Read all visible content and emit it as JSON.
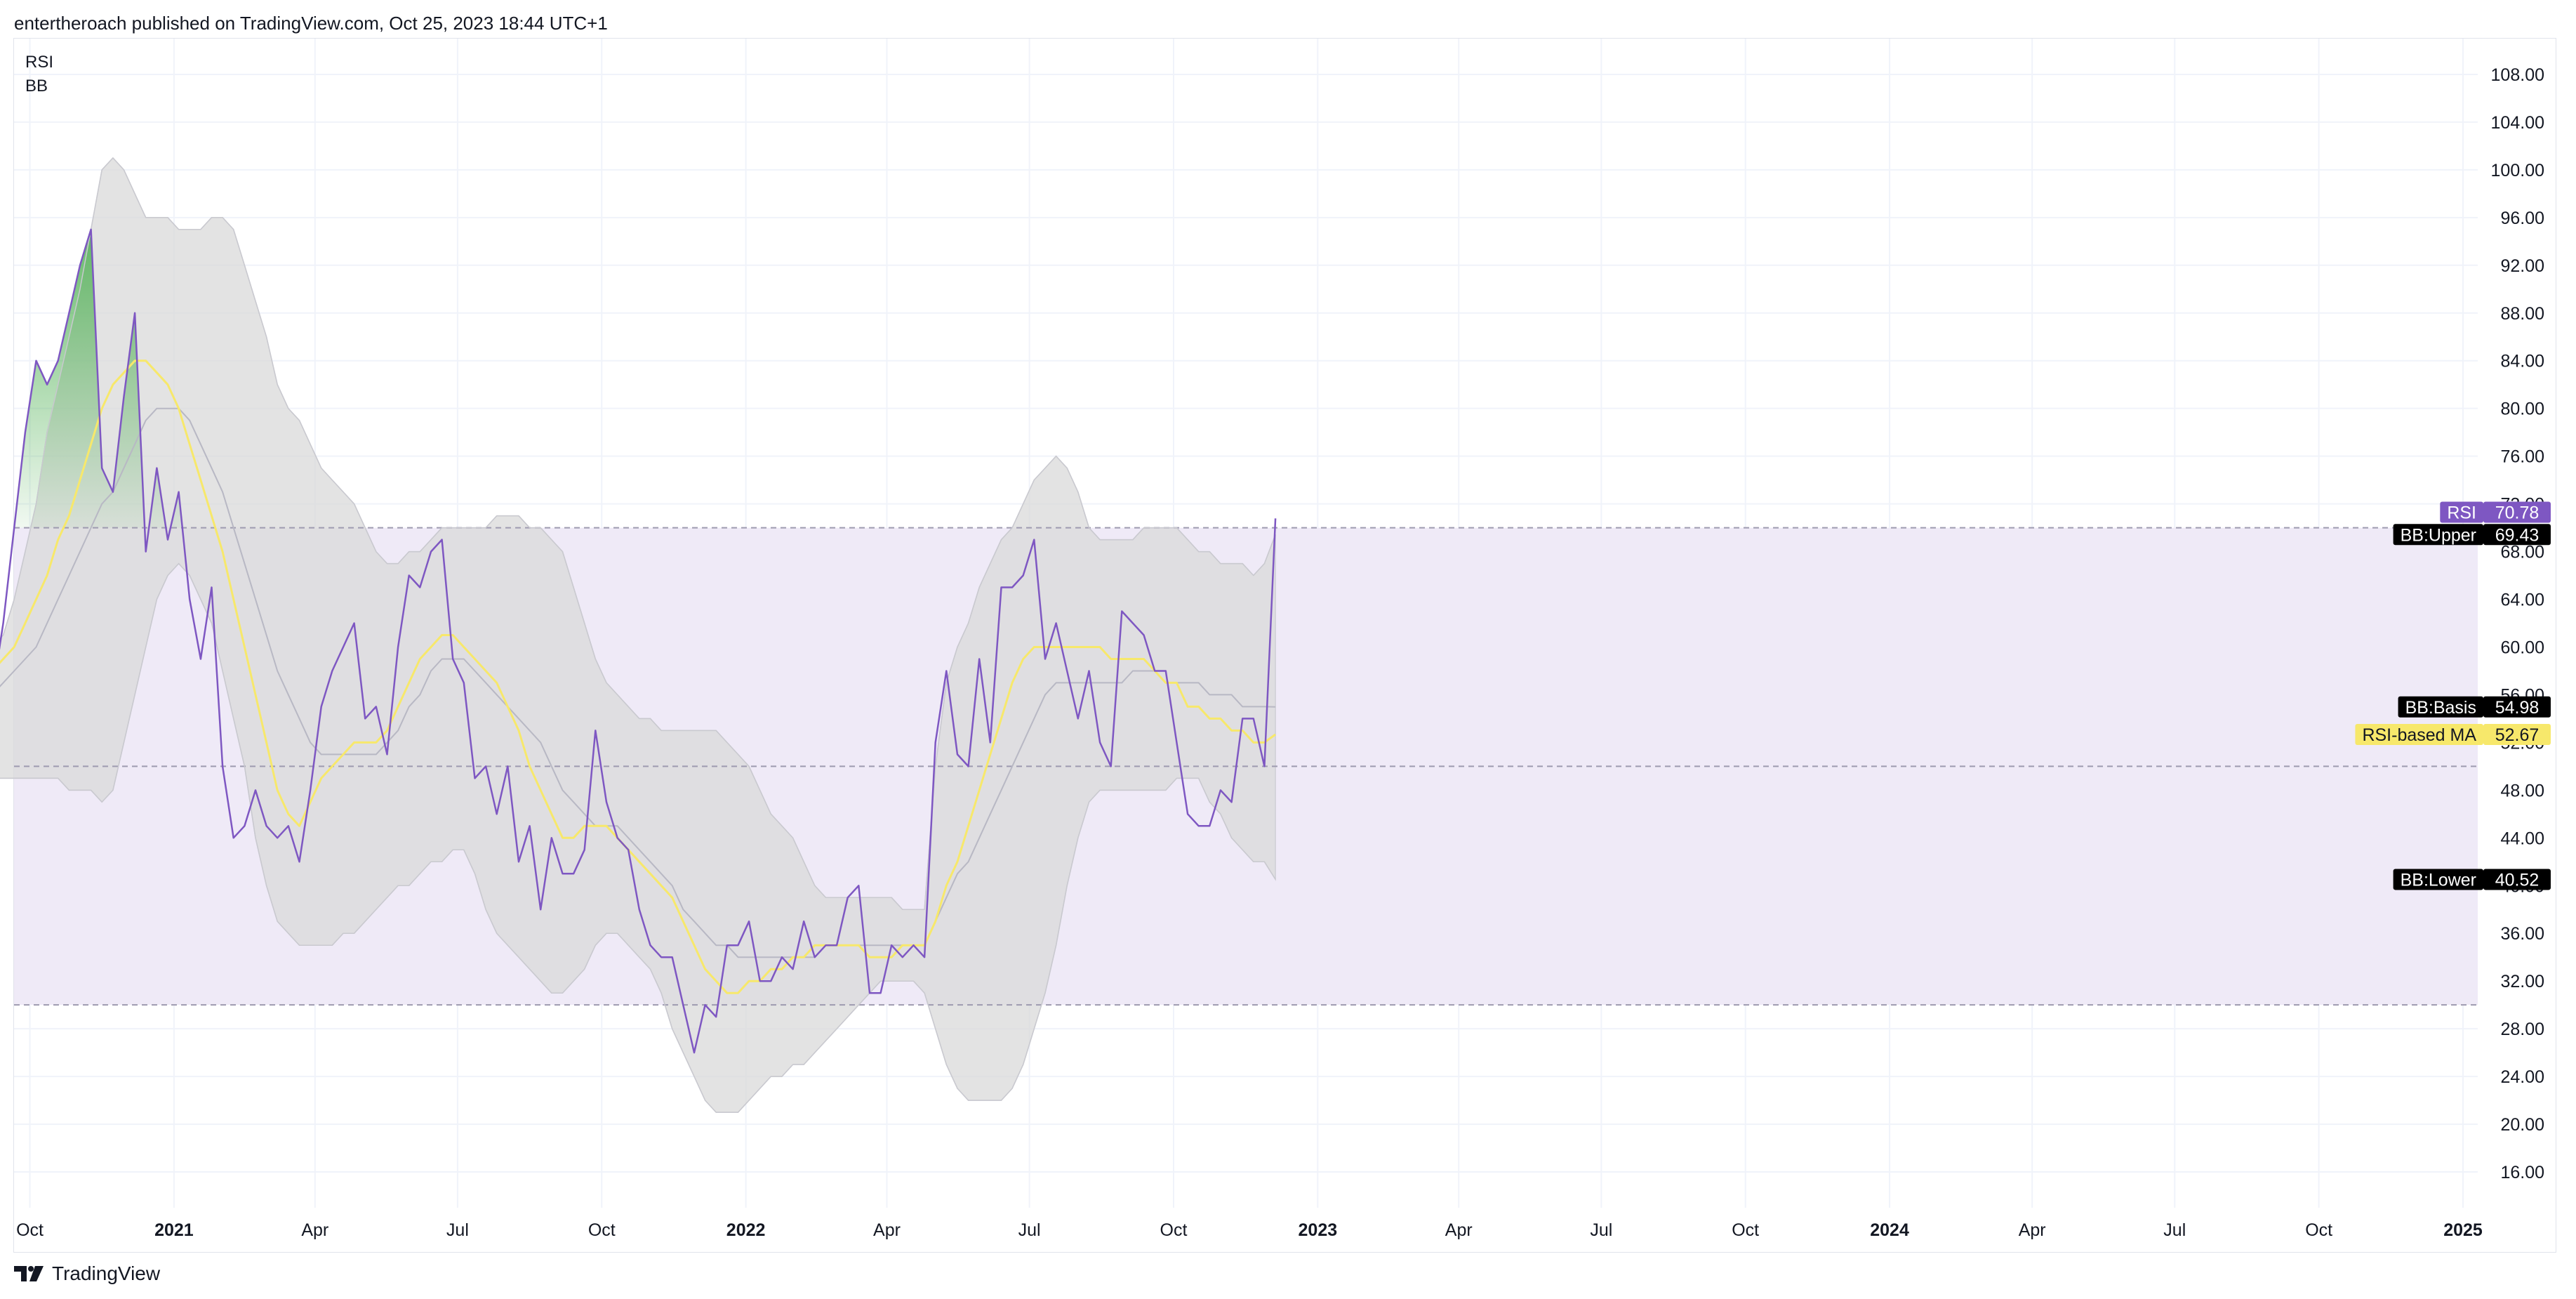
{
  "header": {
    "text": "entertheroach published on TradingView.com, Oct 25, 2023 18:44 UTC+1"
  },
  "legend": {
    "items": [
      "RSI",
      "BB"
    ]
  },
  "footer": {
    "brand": "TradingView"
  },
  "colors": {
    "rsi": "#7e57c2",
    "ma": "#f7e86b",
    "bb_band": "#d9d9d9",
    "bb_basis": "#b8b8c4",
    "band_zone": "#efeaf7",
    "overbought_fill": "#4caf50",
    "grid": "#f0f3fa",
    "level": "#9e9bb0"
  },
  "chart_data": {
    "type": "line",
    "x_start": "2020-09-07",
    "x_interval": "weekly",
    "ylim": [
      13.0,
      111.0
    ],
    "yticks": [
      16.0,
      20.0,
      24.0,
      28.0,
      32.0,
      36.0,
      40.0,
      44.0,
      48.0,
      52.0,
      56.0,
      60.0,
      64.0,
      68.0,
      72.0,
      76.0,
      80.0,
      84.0,
      88.0,
      92.0,
      96.0,
      100.0,
      104.0,
      108.0
    ],
    "xticks": [
      {
        "label": "Oct",
        "date": "2020-10-01",
        "bold": false
      },
      {
        "label": "2021",
        "date": "2021-01-01",
        "bold": true
      },
      {
        "label": "Apr",
        "date": "2021-04-01",
        "bold": false
      },
      {
        "label": "Jul",
        "date": "2021-07-01",
        "bold": false
      },
      {
        "label": "Oct",
        "date": "2021-10-01",
        "bold": false
      },
      {
        "label": "2022",
        "date": "2022-01-01",
        "bold": true
      },
      {
        "label": "Apr",
        "date": "2022-04-01",
        "bold": false
      },
      {
        "label": "Jul",
        "date": "2022-07-01",
        "bold": false
      },
      {
        "label": "Oct",
        "date": "2022-10-01",
        "bold": false
      },
      {
        "label": "2023",
        "date": "2023-01-01",
        "bold": true
      },
      {
        "label": "Apr",
        "date": "2023-04-01",
        "bold": false
      },
      {
        "label": "Jul",
        "date": "2023-07-01",
        "bold": false
      },
      {
        "label": "Oct",
        "date": "2023-10-01",
        "bold": false
      },
      {
        "label": "2024",
        "date": "2024-01-01",
        "bold": true
      },
      {
        "label": "Apr",
        "date": "2024-04-01",
        "bold": false
      },
      {
        "label": "Jul",
        "date": "2024-07-01",
        "bold": false
      },
      {
        "label": "Oct",
        "date": "2024-10-01",
        "bold": false
      },
      {
        "label": "2025",
        "date": "2025-01-01",
        "bold": true
      }
    ],
    "levels": {
      "upper": 70,
      "middle": 50,
      "lower": 30
    },
    "grid": true,
    "series": [
      {
        "name": "RSI",
        "values": [
          56,
          62,
          70,
          78,
          84,
          82,
          84,
          88,
          92,
          95,
          75,
          73,
          81,
          88,
          68,
          75,
          69,
          73,
          64,
          59,
          65,
          50,
          44,
          45,
          48,
          45,
          44,
          45,
          42,
          48,
          55,
          58,
          60,
          62,
          54,
          55,
          51,
          60,
          66,
          65,
          68,
          69,
          59,
          57,
          49,
          50,
          46,
          50,
          42,
          45,
          38,
          44,
          41,
          41,
          43,
          53,
          47,
          44,
          43,
          38,
          35,
          34,
          34,
          30,
          26,
          30,
          29,
          35,
          35,
          37,
          32,
          32,
          34,
          33,
          37,
          34,
          35,
          35,
          39,
          40,
          31,
          31,
          35,
          34,
          35,
          34,
          52,
          58,
          51,
          50,
          59,
          52,
          65,
          65,
          66,
          69,
          59,
          62,
          58,
          54,
          58,
          52,
          50,
          63,
          62,
          61,
          58,
          58,
          52,
          46,
          45,
          45,
          48,
          47,
          54,
          54,
          50,
          70.78
        ]
      },
      {
        "name": "RSI-based MA",
        "values": [
          58,
          59,
          60,
          62,
          64,
          66,
          69,
          71,
          74,
          77,
          80,
          82,
          83,
          84,
          84,
          83,
          82,
          80,
          77,
          74,
          71,
          68,
          64,
          60,
          56,
          52,
          48,
          46,
          45,
          47,
          49,
          50,
          51,
          52,
          52,
          52,
          53,
          55,
          57,
          59,
          60,
          61,
          61,
          60,
          59,
          58,
          57,
          55,
          53,
          50,
          48,
          46,
          44,
          44,
          45,
          45,
          45,
          44,
          43,
          42,
          41,
          40,
          39,
          37,
          35,
          33,
          32,
          31,
          31,
          32,
          32,
          33,
          33,
          34,
          34,
          35,
          35,
          35,
          35,
          35,
          34,
          34,
          34,
          35,
          35,
          35,
          37,
          40,
          42,
          45,
          48,
          51,
          54,
          57,
          59,
          60,
          60,
          60,
          60,
          60,
          60,
          60,
          59,
          59,
          59,
          59,
          58,
          57,
          57,
          55,
          55,
          54,
          54,
          53,
          53,
          52,
          52,
          52.67
        ]
      },
      {
        "name": "BB:Basis",
        "values": [
          56,
          57,
          58,
          59,
          60,
          62,
          64,
          66,
          68,
          70,
          72,
          73,
          75,
          77,
          79,
          80,
          80,
          80,
          79,
          77,
          75,
          73,
          70,
          67,
          64,
          61,
          58,
          56,
          54,
          52,
          51,
          51,
          51,
          51,
          51,
          51,
          52,
          53,
          55,
          56,
          58,
          59,
          59,
          59,
          58,
          57,
          56,
          55,
          54,
          53,
          52,
          50,
          48,
          47,
          46,
          45,
          45,
          45,
          44,
          43,
          42,
          41,
          40,
          38,
          37,
          36,
          35,
          35,
          34,
          34,
          34,
          34,
          34,
          34,
          34,
          34,
          35,
          35,
          35,
          35,
          35,
          35,
          35,
          35,
          35,
          35,
          37,
          39,
          41,
          42,
          44,
          46,
          48,
          50,
          52,
          54,
          56,
          57,
          57,
          57,
          57,
          57,
          57,
          57,
          58,
          58,
          58,
          57,
          57,
          57,
          57,
          56,
          56,
          56,
          55,
          55,
          55,
          54.98
        ]
      },
      {
        "name": "BB:Upper",
        "values": [
          60,
          61,
          64,
          68,
          72,
          78,
          82,
          86,
          90,
          95,
          100,
          101,
          100,
          98,
          96,
          96,
          96,
          95,
          95,
          95,
          96,
          96,
          95,
          92,
          89,
          86,
          82,
          80,
          79,
          77,
          75,
          74,
          73,
          72,
          70,
          68,
          67,
          67,
          68,
          68,
          69,
          70,
          70,
          70,
          70,
          70,
          71,
          71,
          71,
          70,
          70,
          69,
          68,
          65,
          62,
          59,
          57,
          56,
          55,
          54,
          54,
          53,
          53,
          53,
          53,
          53,
          53,
          52,
          51,
          50,
          48,
          46,
          45,
          44,
          42,
          40,
          39,
          39,
          39,
          39,
          39,
          39,
          39,
          38,
          38,
          38,
          50,
          57,
          60,
          62,
          65,
          67,
          69,
          70,
          72,
          74,
          75,
          76,
          75,
          73,
          70,
          69,
          69,
          69,
          69,
          70,
          70,
          70,
          70,
          69,
          68,
          68,
          67,
          67,
          67,
          66,
          67,
          69.43
        ]
      },
      {
        "name": "BB:Lower",
        "values": [
          49,
          49,
          49,
          49,
          49,
          49,
          49,
          48,
          48,
          48,
          47,
          48,
          52,
          56,
          60,
          64,
          66,
          67,
          66,
          64,
          62,
          58,
          54,
          50,
          44,
          40,
          37,
          36,
          35,
          35,
          35,
          35,
          36,
          36,
          37,
          38,
          39,
          40,
          40,
          41,
          42,
          42,
          43,
          43,
          41,
          38,
          36,
          35,
          34,
          33,
          32,
          31,
          31,
          32,
          33,
          35,
          36,
          36,
          35,
          34,
          33,
          31,
          28,
          26,
          24,
          22,
          21,
          21,
          21,
          22,
          23,
          24,
          24,
          25,
          25,
          26,
          27,
          28,
          29,
          30,
          31,
          32,
          32,
          32,
          32,
          31,
          28,
          25,
          23,
          22,
          22,
          22,
          22,
          23,
          25,
          28,
          31,
          35,
          40,
          44,
          47,
          48,
          48,
          48,
          48,
          48,
          48,
          48,
          49,
          49,
          49,
          47,
          46,
          44,
          43,
          42,
          42,
          40.52
        ]
      }
    ],
    "value_labels": [
      {
        "name": "RSI",
        "value": "70.78",
        "price": 71.3,
        "box_color": "#7e57c2",
        "value_color": "#7e57c2",
        "text_color": "#ffffff"
      },
      {
        "name": "BB:Upper",
        "value": "69.43",
        "price": 69.43,
        "box_color": "#000000",
        "value_color": "#000000",
        "text_color": "#ffffff"
      },
      {
        "name": "BB:Basis",
        "value": "54.98",
        "price": 54.98,
        "box_color": "#000000",
        "value_color": "#000000",
        "text_color": "#ffffff"
      },
      {
        "name": "RSI-based MA",
        "value": "52.67",
        "price": 52.67,
        "box_color": "#f7e86b",
        "value_color": "#f7e86b",
        "text_color": "#131722"
      },
      {
        "name": "BB:Lower",
        "value": "40.52",
        "price": 40.52,
        "box_color": "#000000",
        "value_color": "#000000",
        "text_color": "#ffffff"
      }
    ]
  }
}
